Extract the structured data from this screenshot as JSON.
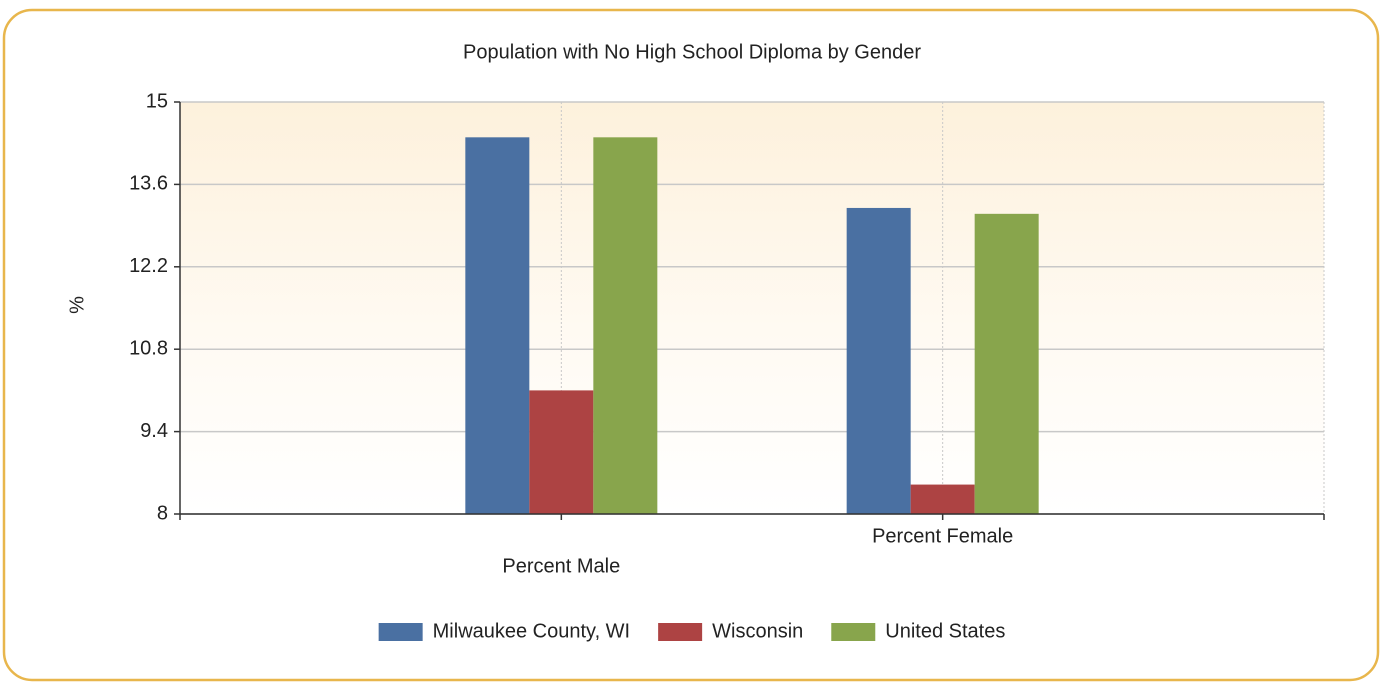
{
  "chart_data": {
    "type": "bar",
    "title": "Population with No High School Diploma by Gender",
    "y_label": "%",
    "categories": [
      "Percent Male",
      "Percent Female"
    ],
    "series": [
      {
        "name": "Milwaukee County, WI",
        "color": "#4a70a2",
        "values": [
          14.4,
          13.2
        ]
      },
      {
        "name": "Wisconsin",
        "color": "#ad4343",
        "values": [
          10.1,
          8.5
        ]
      },
      {
        "name": "United States",
        "color": "#88a54c",
        "values": [
          14.4,
          13.1
        ]
      }
    ],
    "ylim": [
      8,
      15
    ],
    "yticks": [
      8,
      9.4,
      10.8,
      12.2,
      13.6,
      15
    ],
    "grid": true
  }
}
